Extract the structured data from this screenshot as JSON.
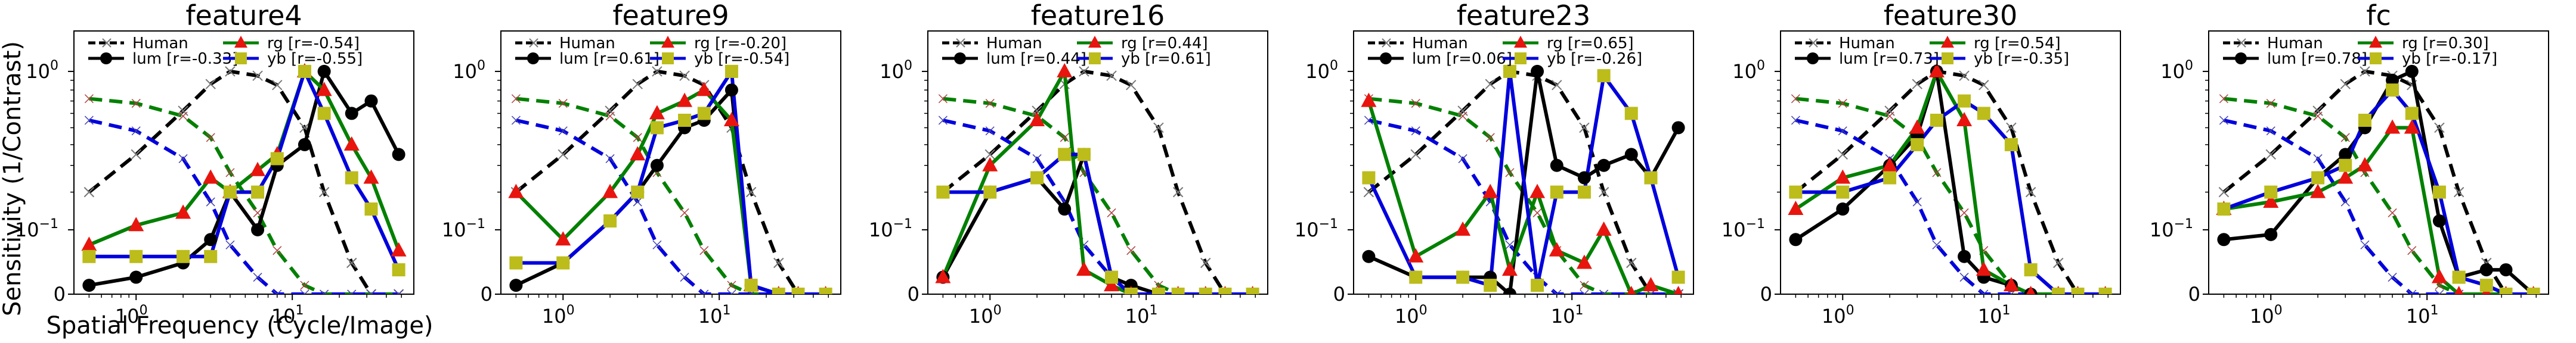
{
  "figure": {
    "ylabel": "Sensitivity (1/Contrast)",
    "xlabel": "Spatial Frequency (Cycle/Image)",
    "colors": {
      "human": "#000000",
      "lum": "#000000",
      "rg_line": "#008000",
      "rg_marker": "#e8150f",
      "yb_line": "#0000dd",
      "yb_marker": "#bcbc1a"
    }
  },
  "chart_data": [
    {
      "type": "line",
      "title": "feature4",
      "xscale": "log",
      "xlim": [
        0.4,
        60
      ],
      "yscale": "symlog",
      "ylim": [
        0,
        1.6
      ],
      "legend": {
        "human": "Human",
        "lum": "lum [r=-0.33]",
        "rg": "rg     [r=-0.54]",
        "yb": "yb     [r=-0.55]"
      },
      "x": [
        0.5,
        1,
        2,
        3,
        4,
        6,
        8,
        12,
        16,
        24,
        32,
        48
      ],
      "series": [
        {
          "name": "lum",
          "values": [
            0.01,
            0.02,
            0.04,
            0.08,
            0.2,
            0.1,
            0.3,
            0.4,
            1.0,
            0.6,
            0.7,
            0.35
          ]
        },
        {
          "name": "rg",
          "values": [
            0.07,
            0.11,
            0.14,
            0.25,
            0.2,
            0.28,
            0.35,
            1.0,
            0.8,
            0.4,
            0.25,
            0.06
          ]
        },
        {
          "name": "yb",
          "values": [
            0.05,
            0.05,
            0.05,
            0.05,
            0.2,
            0.2,
            0.33,
            1.0,
            0.6,
            0.25,
            0.15,
            0.03
          ]
        },
        {
          "name": "human_lum",
          "values": [
            0.2,
            0.35,
            0.62,
            0.86,
            1.0,
            0.95,
            0.85,
            0.5,
            0.2,
            0.04,
            0.0,
            0.0
          ]
        },
        {
          "name": "human_rg",
          "values": [
            0.72,
            0.68,
            0.58,
            0.44,
            0.27,
            0.14,
            0.06,
            0.01,
            0.0,
            0.0,
            0.0,
            0.0
          ]
        },
        {
          "name": "human_yb",
          "values": [
            0.55,
            0.48,
            0.33,
            0.17,
            0.07,
            0.02,
            0.0,
            0.0,
            0.0,
            0.0,
            0.0,
            0.0
          ]
        }
      ]
    },
    {
      "type": "line",
      "title": "feature9",
      "xscale": "log",
      "xlim": [
        0.4,
        60
      ],
      "yscale": "symlog",
      "ylim": [
        0,
        1.6
      ],
      "legend": {
        "human": "Human",
        "lum": "lum [r=0.61]",
        "rg": "rg     [r=-0.20]",
        "yb": "yb     [r=-0.54]"
      },
      "x": [
        0.5,
        1,
        2,
        3,
        4,
        6,
        8,
        12,
        16,
        24,
        32,
        48
      ],
      "series": [
        {
          "name": "lum",
          "values": [
            0.01,
            0.04,
            0.12,
            0.2,
            0.3,
            0.5,
            0.55,
            0.8,
            0.01,
            0.0,
            0.0,
            0.0
          ]
        },
        {
          "name": "rg",
          "values": [
            0.2,
            0.08,
            0.2,
            0.35,
            0.6,
            0.7,
            0.8,
            0.55,
            0.01,
            0.0,
            0.0,
            0.0
          ]
        },
        {
          "name": "yb",
          "values": [
            0.04,
            0.04,
            0.12,
            0.2,
            0.5,
            0.55,
            0.6,
            1.0,
            0.01,
            0.0,
            0.0,
            0.0
          ]
        },
        {
          "name": "human_lum",
          "values": [
            0.2,
            0.35,
            0.62,
            0.86,
            1.0,
            0.95,
            0.85,
            0.5,
            0.2,
            0.04,
            0.0,
            0.0
          ]
        },
        {
          "name": "human_rg",
          "values": [
            0.72,
            0.68,
            0.58,
            0.44,
            0.27,
            0.14,
            0.06,
            0.01,
            0.0,
            0.0,
            0.0,
            0.0
          ]
        },
        {
          "name": "human_yb",
          "values": [
            0.55,
            0.48,
            0.33,
            0.17,
            0.07,
            0.02,
            0.0,
            0.0,
            0.0,
            0.0,
            0.0,
            0.0
          ]
        }
      ]
    },
    {
      "type": "line",
      "title": "feature16",
      "xscale": "log",
      "xlim": [
        0.4,
        60
      ],
      "yscale": "symlog",
      "ylim": [
        0,
        1.6
      ],
      "legend": {
        "human": "Human",
        "lum": "lum [r=0.44]",
        "rg": "rg     [r=0.44]",
        "yb": "yb     [r=0.61]"
      },
      "x": [
        0.5,
        1,
        2,
        3,
        4,
        6,
        8,
        12,
        16,
        24,
        32,
        48
      ],
      "series": [
        {
          "name": "lum",
          "values": [
            0.02,
            0.2,
            0.25,
            0.15,
            0.35,
            0.02,
            0.01,
            0.0,
            0.0,
            0.0,
            0.0,
            0.0
          ]
        },
        {
          "name": "rg",
          "values": [
            0.02,
            0.3,
            0.55,
            1.0,
            0.03,
            0.01,
            0.0,
            0.0,
            0.0,
            0.0,
            0.0,
            0.0
          ]
        },
        {
          "name": "yb",
          "values": [
            0.2,
            0.2,
            0.25,
            0.35,
            0.35,
            0.02,
            0.0,
            0.0,
            0.0,
            0.0,
            0.0,
            0.0
          ]
        },
        {
          "name": "human_lum",
          "values": [
            0.2,
            0.35,
            0.62,
            0.86,
            1.0,
            0.95,
            0.85,
            0.5,
            0.2,
            0.04,
            0.0,
            0.0
          ]
        },
        {
          "name": "human_rg",
          "values": [
            0.72,
            0.68,
            0.58,
            0.44,
            0.27,
            0.14,
            0.06,
            0.01,
            0.0,
            0.0,
            0.0,
            0.0
          ]
        },
        {
          "name": "human_yb",
          "values": [
            0.55,
            0.48,
            0.33,
            0.17,
            0.07,
            0.02,
            0.0,
            0.0,
            0.0,
            0.0,
            0.0,
            0.0
          ]
        }
      ]
    },
    {
      "type": "line",
      "title": "feature23",
      "xscale": "log",
      "xlim": [
        0.4,
        60
      ],
      "yscale": "symlog",
      "ylim": [
        0,
        1.6
      ],
      "legend": {
        "human": "Human",
        "lum": "lum [r=0.06]",
        "rg": "rg     [r=0.65]",
        "yb": "yb     [r=-0.26]"
      },
      "x": [
        0.5,
        1,
        2,
        3,
        4,
        6,
        8,
        12,
        16,
        24,
        32,
        48
      ],
      "series": [
        {
          "name": "lum",
          "values": [
            0.05,
            0.02,
            0.02,
            0.02,
            0.0,
            1.0,
            0.3,
            0.25,
            0.3,
            0.35,
            0.25,
            0.5
          ]
        },
        {
          "name": "rg",
          "values": [
            0.7,
            0.05,
            0.1,
            0.2,
            0.03,
            0.2,
            0.06,
            0.04,
            0.1,
            0.0,
            0.01,
            0.0
          ]
        },
        {
          "name": "yb",
          "values": [
            0.25,
            0.02,
            0.02,
            0.01,
            1.0,
            0.01,
            0.2,
            0.2,
            0.95,
            0.6,
            0.25,
            0.02
          ]
        },
        {
          "name": "human_lum",
          "values": [
            0.2,
            0.35,
            0.62,
            0.86,
            1.0,
            0.95,
            0.85,
            0.5,
            0.2,
            0.04,
            0.0,
            0.0
          ]
        },
        {
          "name": "human_rg",
          "values": [
            0.72,
            0.68,
            0.58,
            0.44,
            0.27,
            0.14,
            0.06,
            0.01,
            0.0,
            0.0,
            0.0,
            0.0
          ]
        },
        {
          "name": "human_yb",
          "values": [
            0.55,
            0.48,
            0.33,
            0.17,
            0.07,
            0.02,
            0.0,
            0.0,
            0.0,
            0.0,
            0.0,
            0.0
          ]
        }
      ]
    },
    {
      "type": "line",
      "title": "feature30",
      "xscale": "log",
      "xlim": [
        0.4,
        60
      ],
      "yscale": "symlog",
      "ylim": [
        0,
        1.6
      ],
      "legend": {
        "human": "Human",
        "lum": "lum [r=0.73]",
        "rg": "rg     [r=0.54]",
        "yb": "yb     [r=-0.35]"
      },
      "x": [
        0.5,
        1,
        2,
        3,
        4,
        6,
        8,
        12,
        16,
        24,
        32,
        48
      ],
      "series": [
        {
          "name": "lum",
          "values": [
            0.08,
            0.15,
            0.3,
            0.45,
            1.0,
            0.05,
            0.02,
            0.01,
            0.0,
            0.0,
            0.0,
            0.0
          ]
        },
        {
          "name": "rg",
          "values": [
            0.15,
            0.25,
            0.3,
            0.5,
            1.0,
            0.55,
            0.03,
            0.01,
            0.0,
            0.0,
            0.0,
            0.0
          ]
        },
        {
          "name": "yb",
          "values": [
            0.2,
            0.2,
            0.25,
            0.4,
            0.55,
            0.7,
            0.6,
            0.4,
            0.03,
            0.0,
            0.0,
            0.0
          ]
        },
        {
          "name": "human_lum",
          "values": [
            0.2,
            0.35,
            0.62,
            0.86,
            1.0,
            0.95,
            0.85,
            0.5,
            0.2,
            0.04,
            0.0,
            0.0
          ]
        },
        {
          "name": "human_rg",
          "values": [
            0.72,
            0.68,
            0.58,
            0.44,
            0.27,
            0.14,
            0.06,
            0.01,
            0.0,
            0.0,
            0.0,
            0.0
          ]
        },
        {
          "name": "human_yb",
          "values": [
            0.55,
            0.48,
            0.33,
            0.17,
            0.07,
            0.02,
            0.0,
            0.0,
            0.0,
            0.0,
            0.0,
            0.0
          ]
        }
      ]
    },
    {
      "type": "line",
      "title": "fc",
      "xscale": "log",
      "xlim": [
        0.4,
        60
      ],
      "yscale": "symlog",
      "ylim": [
        0,
        1.6
      ],
      "legend": {
        "human": "Human",
        "lum": "lum [r=0.78]",
        "rg": "rg     [r=0.30]",
        "yb": "yb     [r=-0.17]"
      },
      "x": [
        0.5,
        1,
        2,
        3,
        4,
        6,
        8,
        12,
        16,
        24,
        32,
        48
      ],
      "series": [
        {
          "name": "lum",
          "values": [
            0.08,
            0.09,
            0.25,
            0.35,
            0.5,
            0.9,
            1.0,
            0.12,
            0.02,
            0.03,
            0.03,
            0.0
          ]
        },
        {
          "name": "rg",
          "values": [
            0.15,
            0.17,
            0.2,
            0.25,
            0.3,
            0.5,
            0.5,
            0.02,
            0.0,
            0.0,
            0.0,
            0.0
          ]
        },
        {
          "name": "yb",
          "values": [
            0.15,
            0.2,
            0.25,
            0.3,
            0.55,
            0.8,
            0.6,
            0.2,
            0.02,
            0.01,
            0.0,
            0.0
          ]
        },
        {
          "name": "human_lum",
          "values": [
            0.2,
            0.35,
            0.62,
            0.86,
            1.0,
            0.95,
            0.85,
            0.5,
            0.2,
            0.04,
            0.0,
            0.0
          ]
        },
        {
          "name": "human_rg",
          "values": [
            0.72,
            0.68,
            0.58,
            0.44,
            0.27,
            0.14,
            0.06,
            0.01,
            0.0,
            0.0,
            0.0,
            0.0
          ]
        },
        {
          "name": "human_yb",
          "values": [
            0.55,
            0.48,
            0.33,
            0.17,
            0.07,
            0.02,
            0.0,
            0.0,
            0.0,
            0.0,
            0.0,
            0.0
          ]
        }
      ]
    }
  ]
}
